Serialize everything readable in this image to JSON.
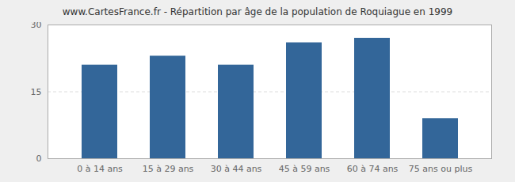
{
  "chart_data": {
    "type": "bar",
    "title": "www.CartesFrance.fr - Répartition par âge de la population de Roquiague en 1999",
    "categories": [
      "0 à 14 ans",
      "15 à 29 ans",
      "30 à 44 ans",
      "45 à 59 ans",
      "60 à 74 ans",
      "75 ans ou plus"
    ],
    "values": [
      21,
      23,
      21,
      26,
      27,
      9
    ],
    "color": "#336699",
    "ylim": [
      0,
      30
    ],
    "yticks": [
      0,
      15,
      30
    ],
    "grid": true
  }
}
